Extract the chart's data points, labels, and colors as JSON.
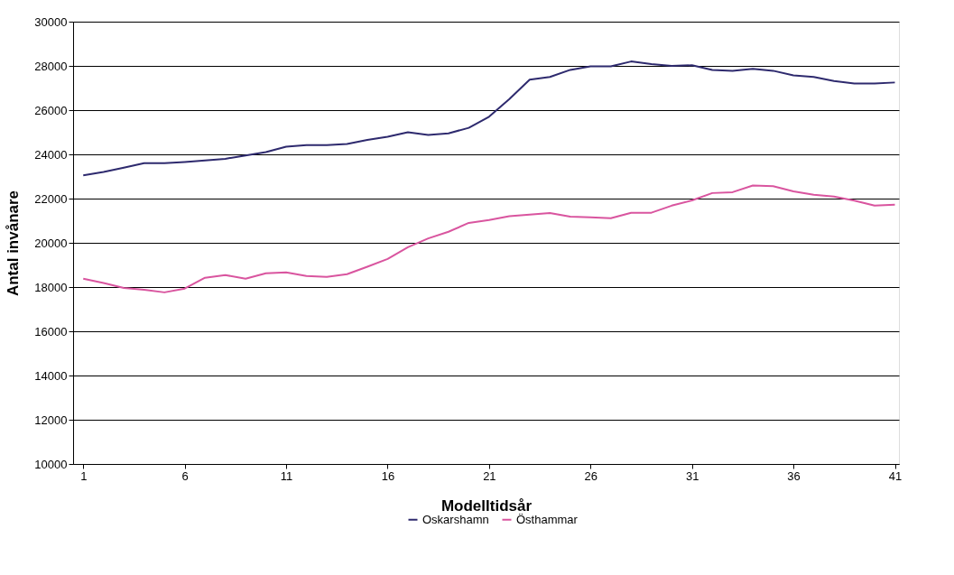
{
  "chart_data": {
    "type": "line",
    "xlabel": "Modelltidsår",
    "ylabel": "Antal invånare",
    "x": [
      1,
      2,
      3,
      4,
      5,
      6,
      7,
      8,
      9,
      10,
      11,
      12,
      13,
      14,
      15,
      16,
      17,
      18,
      19,
      20,
      21,
      22,
      23,
      24,
      25,
      26,
      27,
      28,
      29,
      30,
      31,
      32,
      33,
      34,
      35,
      36,
      37,
      38,
      39,
      40,
      41
    ],
    "xlim": [
      0.5,
      41.2
    ],
    "xticks": [
      1,
      6,
      11,
      16,
      21,
      26,
      31,
      36,
      41
    ],
    "ylim": [
      10000,
      30000
    ],
    "yticks": [
      10000,
      12000,
      14000,
      16000,
      18000,
      20000,
      22000,
      24000,
      26000,
      28000,
      30000
    ],
    "grid": "y",
    "legend": "bottom",
    "marker": "none",
    "line_style": "solid",
    "series": [
      {
        "name": "Oskarshamn",
        "color": "#2e2a6e",
        "values": [
          23050,
          23200,
          23400,
          23600,
          23600,
          23650,
          23720,
          23800,
          23950,
          24100,
          24350,
          24420,
          24420,
          24470,
          24650,
          24800,
          25000,
          24880,
          24950,
          25200,
          25700,
          26500,
          27380,
          27500,
          27820,
          27980,
          27980,
          28200,
          28080,
          28000,
          28030,
          27820,
          27780,
          27870,
          27780,
          27570,
          27500,
          27320,
          27200,
          27200,
          27250
        ]
      },
      {
        "name": "Östhammar",
        "color": "#d9559f",
        "values": [
          18380,
          18180,
          17960,
          17880,
          17760,
          17930,
          18420,
          18540,
          18380,
          18620,
          18660,
          18500,
          18460,
          18580,
          18920,
          19270,
          19800,
          20200,
          20500,
          20900,
          21030,
          21200,
          21280,
          21350,
          21180,
          21150,
          21110,
          21360,
          21360,
          21680,
          21920,
          22250,
          22290,
          22590,
          22560,
          22330,
          22170,
          22090,
          21910,
          21680,
          21720
        ]
      }
    ]
  }
}
